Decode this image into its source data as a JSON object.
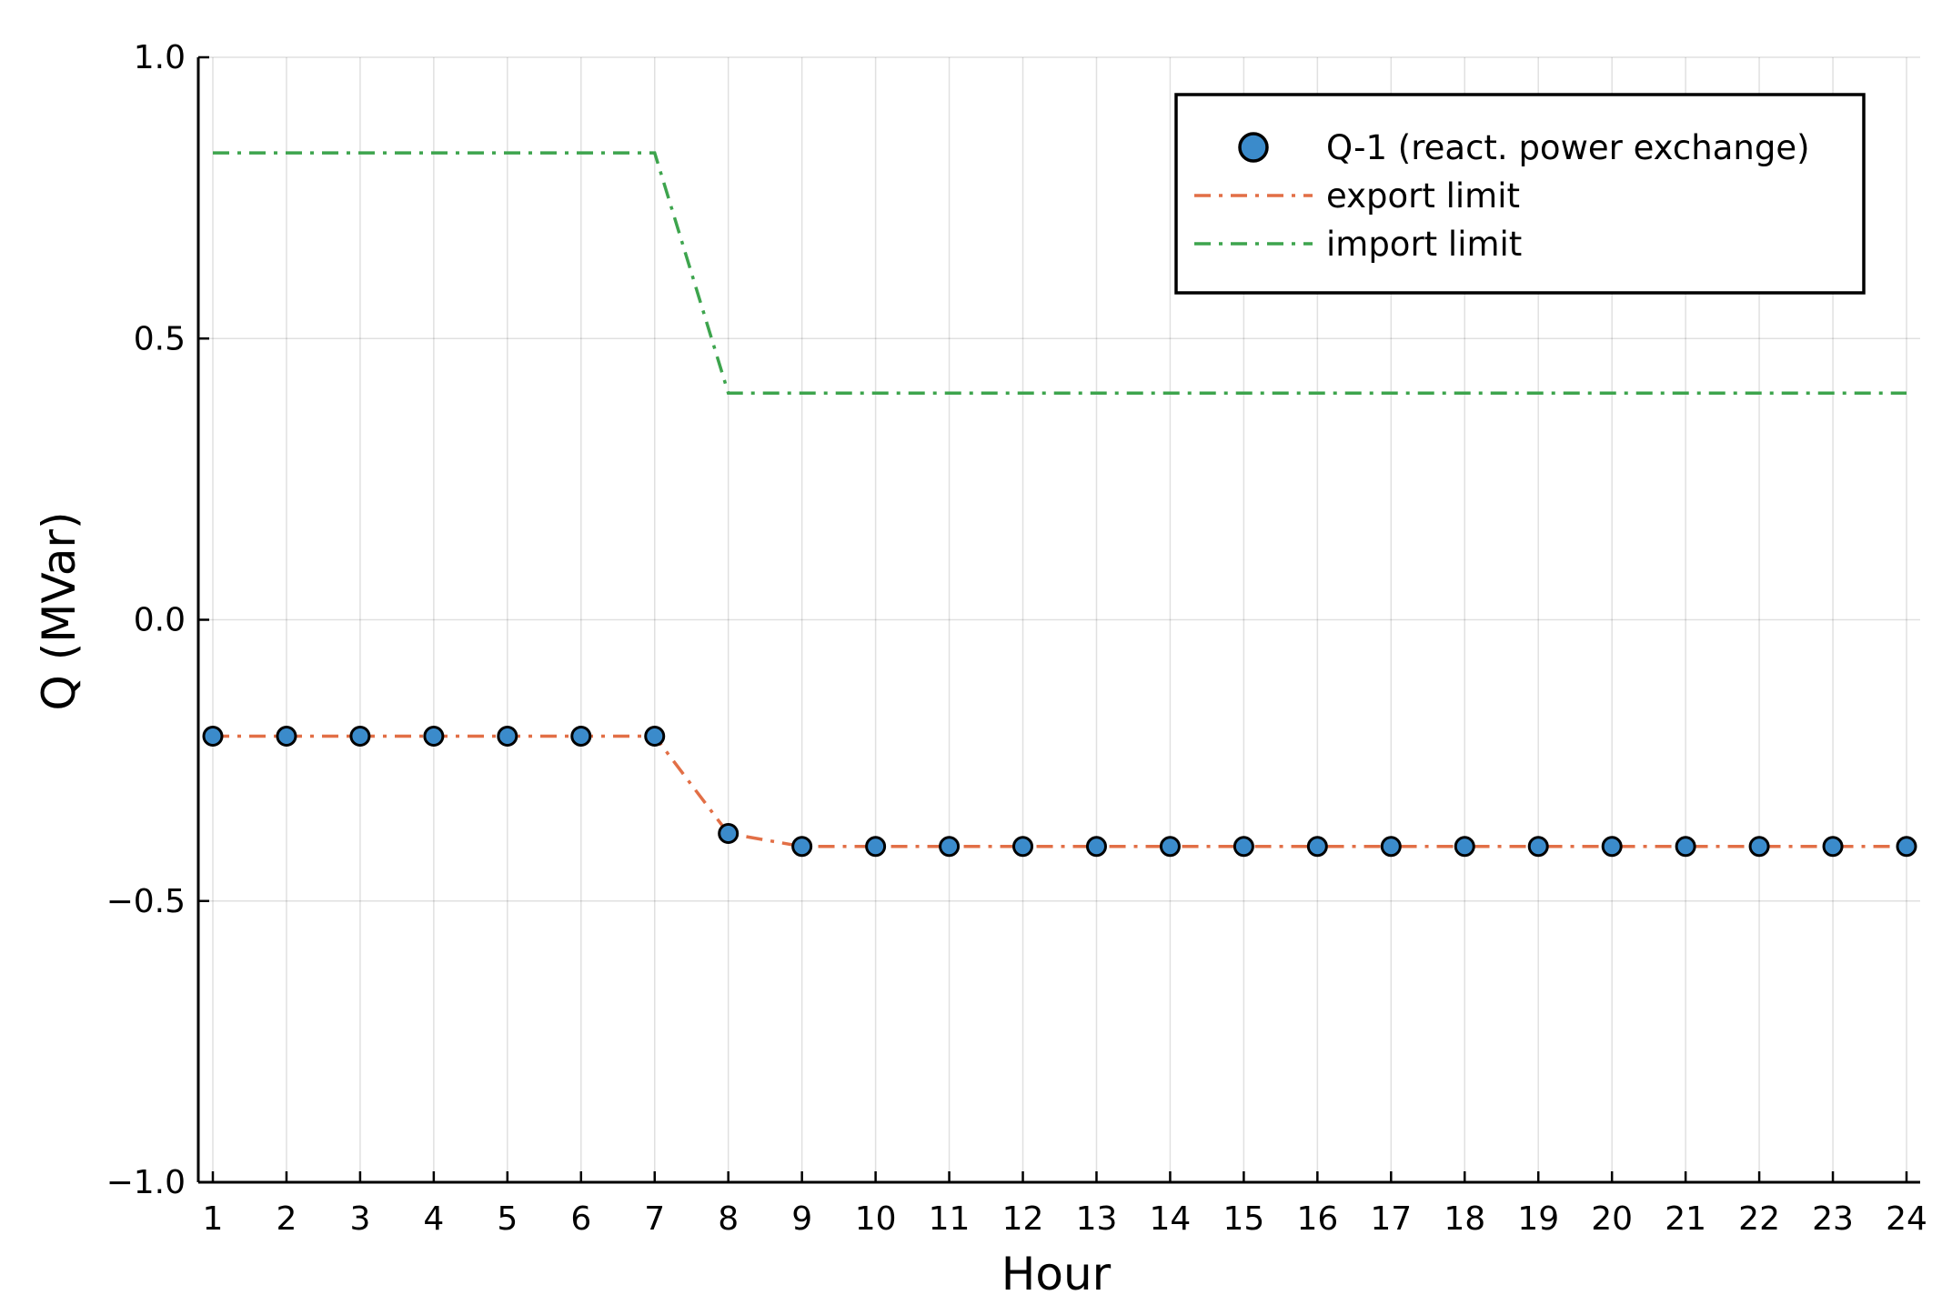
{
  "chart_data": {
    "type": "line",
    "title": "",
    "xlabel": "Hour",
    "ylabel": "Q (MVar)",
    "xlim": [
      1,
      24
    ],
    "ylim": [
      -1.0,
      1.0
    ],
    "grid": true,
    "legend_position": "top-right",
    "x": [
      1,
      2,
      3,
      4,
      5,
      6,
      7,
      8,
      9,
      10,
      11,
      12,
      13,
      14,
      15,
      16,
      17,
      18,
      19,
      20,
      21,
      22,
      23,
      24
    ],
    "x_tick_labels": [
      "1",
      "2",
      "3",
      "4",
      "5",
      "6",
      "7",
      "8",
      "9",
      "10",
      "11",
      "12",
      "13",
      "14",
      "15",
      "16",
      "17",
      "18",
      "19",
      "20",
      "21",
      "22",
      "23",
      "24"
    ],
    "y_ticks": [
      -1.0,
      -0.5,
      0.0,
      0.5,
      1.0
    ],
    "y_tick_labels": [
      "−1.0",
      "−0.5",
      "0.0",
      "0.5",
      "1.0"
    ],
    "series": [
      {
        "name": "Q-1 (react. power exchange)",
        "style": "scatter",
        "color": "#3B8BCB",
        "values": [
          -0.207,
          -0.207,
          -0.207,
          -0.207,
          -0.207,
          -0.207,
          -0.207,
          -0.38,
          -0.403,
          -0.403,
          -0.403,
          -0.403,
          -0.403,
          -0.403,
          -0.403,
          -0.403,
          -0.403,
          -0.403,
          -0.403,
          -0.403,
          -0.403,
          -0.403,
          -0.403,
          -0.403
        ]
      },
      {
        "name": "export limit",
        "style": "dashdot",
        "color": "#E26F46",
        "values": [
          -0.207,
          -0.207,
          -0.207,
          -0.207,
          -0.207,
          -0.207,
          -0.207,
          -0.38,
          -0.403,
          -0.403,
          -0.403,
          -0.403,
          -0.403,
          -0.403,
          -0.403,
          -0.403,
          -0.403,
          -0.403,
          -0.403,
          -0.403,
          -0.403,
          -0.403,
          -0.403,
          -0.403
        ]
      },
      {
        "name": "import limit",
        "style": "dashdot",
        "color": "#3DA44D",
        "values": [
          0.83,
          0.83,
          0.83,
          0.83,
          0.83,
          0.83,
          0.83,
          0.403,
          0.403,
          0.403,
          0.403,
          0.403,
          0.403,
          0.403,
          0.403,
          0.403,
          0.403,
          0.403,
          0.403,
          0.403,
          0.403,
          0.403,
          0.403,
          0.403
        ]
      }
    ]
  }
}
